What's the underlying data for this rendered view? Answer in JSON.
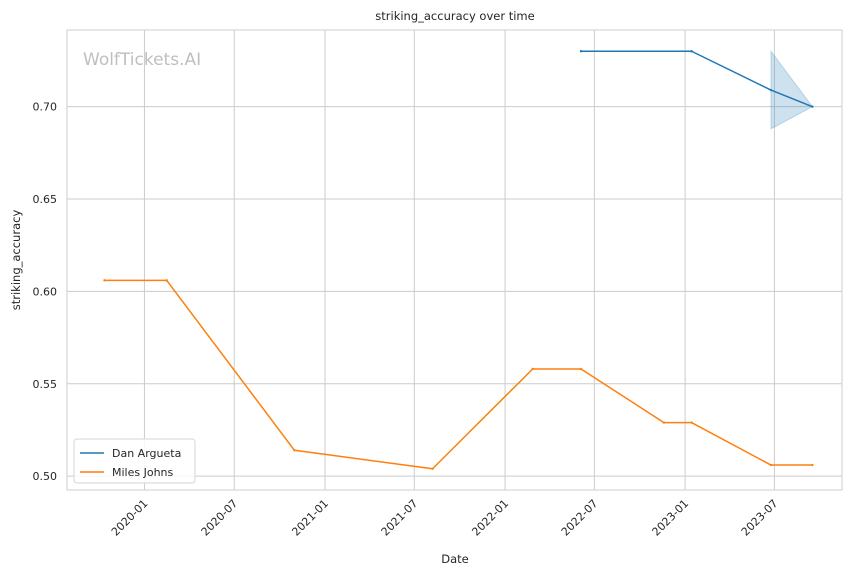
{
  "chart_data": {
    "type": "line",
    "title": "striking_accuracy over time",
    "xlabel": "Date",
    "ylabel": "striking_accuracy",
    "watermark": "WolfTickets.AI",
    "x_ticks": [
      "2020-01",
      "2020-07",
      "2021-01",
      "2021-07",
      "2022-01",
      "2022-07",
      "2023-01",
      "2023-07"
    ],
    "y_ticks": [
      "0.50",
      "0.55",
      "0.60",
      "0.65",
      "0.70"
    ],
    "xlim": [
      "2019-07-28",
      "2023-11-15"
    ],
    "ylim": [
      0.4925,
      0.7415
    ],
    "grid": true,
    "legend_position": "lower-left",
    "series": [
      {
        "name": "Dan Argueta",
        "color": "#1f77b4",
        "points": [
          {
            "x": "2022-06-04",
            "y": 0.73
          },
          {
            "x": "2023-01-14",
            "y": 0.73
          },
          {
            "x": "2023-06-24",
            "y": 0.709
          },
          {
            "x": "2023-09-16",
            "y": 0.7
          }
        ],
        "band": [
          {
            "x": "2023-06-24",
            "lower": 0.688,
            "upper": 0.73
          },
          {
            "x": "2023-09-16",
            "lower": 0.7,
            "upper": 0.7
          }
        ]
      },
      {
        "name": "Miles Johns",
        "color": "#ff7f0e",
        "points": [
          {
            "x": "2019-10-12",
            "y": 0.606
          },
          {
            "x": "2020-02-15",
            "y": 0.606
          },
          {
            "x": "2020-10-31",
            "y": 0.514
          },
          {
            "x": "2021-08-07",
            "y": 0.504
          },
          {
            "x": "2022-02-26",
            "y": 0.558
          },
          {
            "x": "2022-06-04",
            "y": 0.558
          },
          {
            "x": "2022-11-19",
            "y": 0.529
          },
          {
            "x": "2023-01-14",
            "y": 0.529
          },
          {
            "x": "2023-06-24",
            "y": 0.506
          },
          {
            "x": "2023-09-16",
            "y": 0.506
          }
        ]
      }
    ]
  }
}
